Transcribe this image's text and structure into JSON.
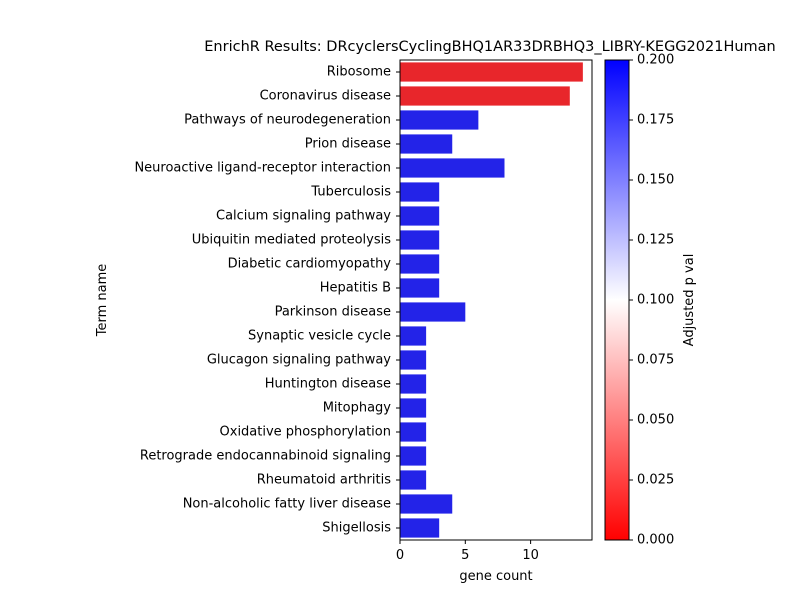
{
  "chart_data": {
    "type": "bar",
    "orientation": "horizontal",
    "title": "EnrichR Results: DRcyclersCyclingBHQ1AR33DRBHQ3_LIBRY-KEGG2021Human",
    "xlabel": "gene count",
    "ylabel": "Term name",
    "xlim": [
      0,
      14.7
    ],
    "xticks": [
      0,
      5,
      10
    ],
    "grid": false,
    "legend": "none",
    "categories": [
      "Ribosome",
      "Coronavirus disease",
      "Pathways of neurodegeneration",
      "Prion disease",
      "Neuroactive ligand-receptor interaction",
      "Tuberculosis",
      "Calcium signaling pathway",
      "Ubiquitin mediated proteolysis",
      "Diabetic cardiomyopathy",
      "Hepatitis B",
      "Parkinson disease",
      "Synaptic vesicle cycle",
      "Glucagon signaling pathway",
      "Huntington disease",
      "Mitophagy",
      "Oxidative phosphorylation",
      "Retrograde endocannabinoid signaling",
      "Rheumatoid arthritis",
      "Non-alcoholic fatty liver disease",
      "Shigellosis"
    ],
    "values": [
      14,
      13,
      6,
      4,
      8,
      3,
      3,
      3,
      3,
      3,
      5,
      2,
      2,
      2,
      2,
      2,
      2,
      2,
      4,
      3
    ],
    "adjusted_p_values": [
      0.0,
      0.0,
      0.2,
      0.2,
      0.2,
      0.2,
      0.2,
      0.2,
      0.2,
      0.2,
      0.2,
      0.2,
      0.2,
      0.2,
      0.2,
      0.2,
      0.2,
      0.2,
      0.2,
      0.2
    ],
    "bar_colors": [
      "#e8262b",
      "#e8262b",
      "#2323e8",
      "#2323e8",
      "#2323e8",
      "#2323e8",
      "#2323e8",
      "#2323e8",
      "#2323e8",
      "#2323e8",
      "#2323e8",
      "#2323e8",
      "#2323e8",
      "#2323e8",
      "#2323e8",
      "#2323e8",
      "#2323e8",
      "#2323e8",
      "#2323e8",
      "#2323e8"
    ],
    "colorbar": {
      "label": "Adjusted p val",
      "range": [
        0.0,
        0.2
      ],
      "ticks": [
        "0.000",
        "0.025",
        "0.050",
        "0.075",
        "0.100",
        "0.125",
        "0.150",
        "0.175",
        "0.200"
      ],
      "colors": [
        "#ff0000",
        "#ffffff",
        "#0000ff"
      ]
    }
  }
}
